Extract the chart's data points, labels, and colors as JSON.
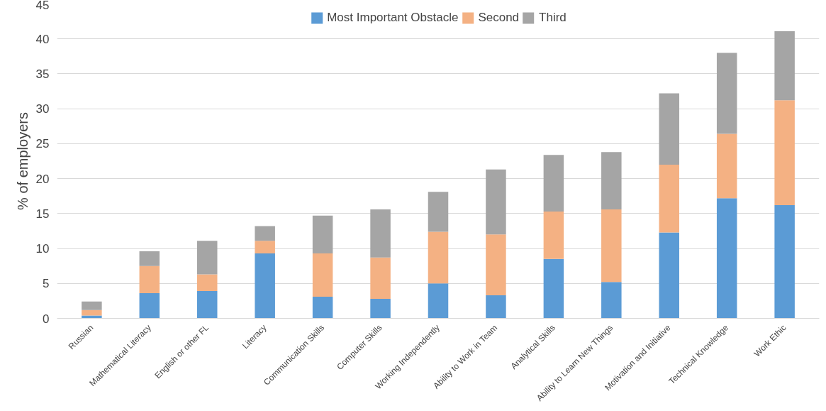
{
  "chart_data": {
    "type": "bar",
    "stacked": true,
    "ylabel": "% of employers",
    "categories": [
      "Russian",
      "Mathematical Literacy",
      "English or other FL",
      "Literacy",
      "Communication Skills",
      "Computer Skills",
      "Working Independently",
      "Ability to Work in Team",
      "Analytical Skills",
      "Ability to Learn New Things",
      "Motivation and Initiative",
      "Technical Knowledge",
      "Work Ethic"
    ],
    "series": [
      {
        "name": "Most Important Obstacle",
        "color": "#5b9bd5",
        "values": [
          0.4,
          3.6,
          3.9,
          9.3,
          3.1,
          2.8,
          5.0,
          3.3,
          8.5,
          5.2,
          12.3,
          17.2,
          16.2
        ]
      },
      {
        "name": "Second",
        "color": "#f4b183",
        "values": [
          0.8,
          3.9,
          2.4,
          1.8,
          6.2,
          5.9,
          7.4,
          8.7,
          6.8,
          10.4,
          9.7,
          9.2,
          15.0
        ]
      },
      {
        "name": "Third",
        "color": "#a5a5a5",
        "values": [
          1.2,
          2.1,
          4.8,
          2.1,
          5.4,
          6.9,
          5.7,
          9.3,
          8.1,
          8.2,
          10.2,
          11.6,
          9.9
        ]
      }
    ],
    "ylim": [
      0,
      45
    ],
    "yticks": [
      0,
      5,
      10,
      15,
      20,
      25,
      30,
      35,
      40,
      45
    ],
    "grid": "y",
    "legend": "top"
  }
}
